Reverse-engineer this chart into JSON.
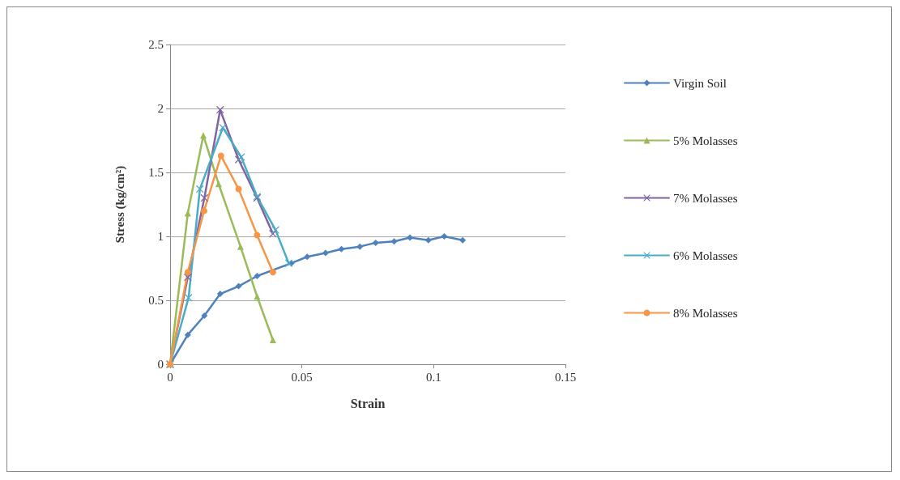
{
  "chart_data": {
    "type": "line",
    "xlabel": "Strain",
    "ylabel": "Stress (kg/cm²)",
    "xlim": [
      0,
      0.15
    ],
    "xticks": [
      0,
      0.05,
      0.1,
      0.15
    ],
    "ylim": [
      0,
      2.5
    ],
    "yticks": [
      0,
      0.5,
      1,
      1.5,
      2,
      2.5
    ],
    "grid": "y",
    "legend": "right",
    "line_style": "solid",
    "series": [
      {
        "name": "Virgin Soil",
        "color": "#4f81bd",
        "marker": "diamond",
        "x": [
          0,
          0.0067,
          0.013,
          0.019,
          0.026,
          0.033,
          0.039,
          0.046,
          0.052,
          0.059,
          0.065,
          0.072,
          0.078,
          0.085,
          0.091,
          0.098,
          0.104,
          0.111
        ],
        "values": [
          0,
          0.23,
          0.38,
          0.55,
          0.61,
          0.69,
          null,
          0.79,
          0.84,
          0.87,
          0.9,
          0.92,
          0.95,
          0.96,
          0.99,
          0.97,
          1.0,
          0.97
        ]
      },
      {
        "name": "5% Molasses",
        "color": "#9bbb59",
        "marker": "triangle",
        "x": [
          0,
          0.0067,
          0.0126,
          0.0184,
          0.0267,
          0.033,
          0.039
        ],
        "values": [
          0,
          1.18,
          1.79,
          1.41,
          0.92,
          0.53,
          0.19
        ]
      },
      {
        "name": "7% Molasses",
        "color": "#8064a2",
        "marker": "cross",
        "x": [
          0,
          0.0067,
          0.013,
          0.019,
          0.026,
          0.033,
          0.039
        ],
        "values": [
          0,
          0.68,
          1.3,
          1.99,
          1.6,
          1.3,
          1.02
        ]
      },
      {
        "name": "6% Molasses",
        "color": "#4bacc6",
        "marker": "cross",
        "x": [
          0,
          0.007,
          0.0113,
          0.02,
          0.027,
          0.033,
          0.04,
          0.045
        ],
        "values": [
          0,
          0.52,
          1.37,
          1.85,
          1.62,
          1.31,
          1.05,
          0.79
        ]
      },
      {
        "name": "8% Molasses",
        "color": "#f79646",
        "marker": "circle",
        "x": [
          0,
          0.0067,
          0.0129,
          0.0193,
          0.026,
          0.033,
          0.039
        ],
        "values": [
          0,
          0.72,
          1.2,
          1.63,
          1.37,
          1.01,
          0.72
        ]
      }
    ]
  }
}
